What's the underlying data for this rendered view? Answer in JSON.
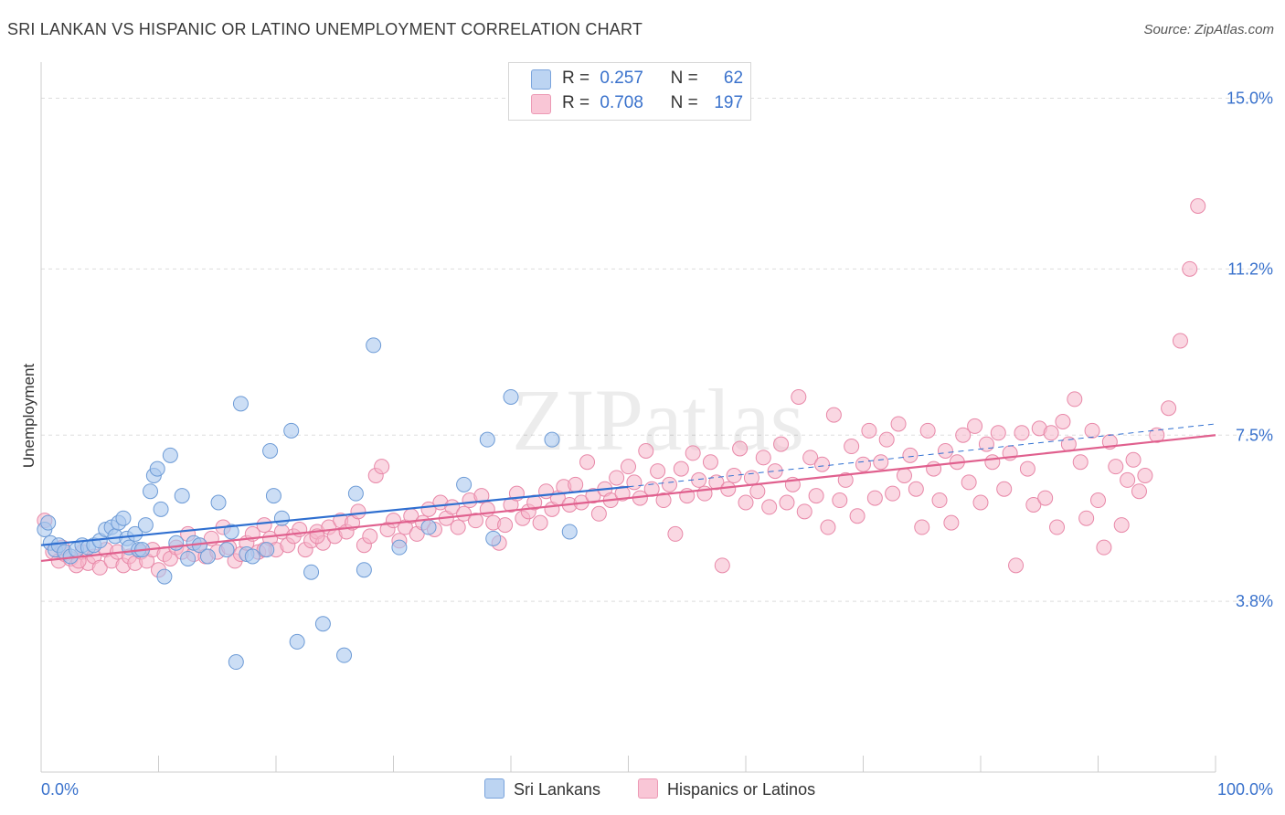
{
  "title": "SRI LANKAN VS HISPANIC OR LATINO UNEMPLOYMENT CORRELATION CHART",
  "source": "Source: ZipAtlas.com",
  "watermark": "ZIPatlas",
  "legend_top": {
    "rows": [
      {
        "r_label": "R =",
        "r_value": "0.257",
        "n_label": "N =",
        "n_value": "62"
      },
      {
        "r_label": "R =",
        "r_value": "0.708",
        "n_label": "N =",
        "n_value": "197"
      }
    ]
  },
  "legend_bottom": [
    "Sri Lankans",
    "Hispanics or Latinos"
  ],
  "colors": {
    "blue_fill": "#aac8ee",
    "blue_stroke": "#6d9bd6",
    "blue_line": "#2f6fd0",
    "pink_fill": "#f5b6ca",
    "pink_stroke": "#e888a8",
    "pink_line": "#e0608e",
    "tick_label": "#3a72cc",
    "grid": "#dddddd"
  },
  "chart_data": {
    "type": "scatter",
    "xlabel": "",
    "ylabel": "Unemployment",
    "xlim": [
      0,
      100
    ],
    "ylim": [
      0,
      15.6
    ],
    "x_tick_labels": [
      "0.0%",
      "100.0%"
    ],
    "y_ticks": [
      3.8,
      7.5,
      11.2,
      15.0
    ],
    "y_tick_labels": [
      "3.8%",
      "7.5%",
      "11.2%",
      "15.0%"
    ],
    "grid": true,
    "legend_placement": "top-center",
    "series": [
      {
        "name": "Sri Lankans",
        "r": 0.257,
        "n": 62,
        "trend": {
          "x": [
            0,
            50
          ],
          "y": [
            5.05,
            6.35
          ],
          "extended_to": [
            100,
            7.75
          ]
        },
        "points": [
          [
            0.3,
            5.4
          ],
          [
            0.8,
            5.1
          ],
          [
            1.2,
            4.95
          ],
          [
            1.5,
            5.05
          ],
          [
            2.0,
            4.9
          ],
          [
            2.5,
            4.8
          ],
          [
            3.0,
            4.95
          ],
          [
            3.5,
            5.05
          ],
          [
            4.0,
            5.0
          ],
          [
            4.5,
            5.05
          ],
          [
            5.0,
            5.15
          ],
          [
            5.5,
            5.4
          ],
          [
            6.0,
            5.45
          ],
          [
            6.3,
            5.25
          ],
          [
            6.6,
            5.55
          ],
          [
            7.0,
            5.65
          ],
          [
            7.3,
            5.2
          ],
          [
            7.5,
            5.0
          ],
          [
            8.0,
            5.3
          ],
          [
            8.3,
            4.95
          ],
          [
            8.6,
            4.95
          ],
          [
            8.9,
            5.5
          ],
          [
            9.3,
            6.25
          ],
          [
            9.6,
            6.6
          ],
          [
            9.9,
            6.75
          ],
          [
            10.2,
            5.85
          ],
          [
            10.5,
            4.35
          ],
          [
            11.0,
            7.05
          ],
          [
            11.5,
            5.1
          ],
          [
            12.0,
            6.15
          ],
          [
            12.5,
            4.75
          ],
          [
            13.0,
            5.1
          ],
          [
            13.5,
            5.05
          ],
          [
            14.2,
            4.8
          ],
          [
            15.1,
            6.0
          ],
          [
            15.8,
            4.95
          ],
          [
            16.2,
            5.35
          ],
          [
            16.6,
            2.45
          ],
          [
            17.0,
            8.2
          ],
          [
            17.5,
            4.85
          ],
          [
            18.0,
            4.8
          ],
          [
            19.2,
            4.95
          ],
          [
            19.5,
            7.15
          ],
          [
            19.8,
            6.15
          ],
          [
            20.5,
            5.65
          ],
          [
            21.3,
            7.6
          ],
          [
            21.8,
            2.9
          ],
          [
            23.0,
            4.45
          ],
          [
            24.0,
            3.3
          ],
          [
            25.8,
            2.6
          ],
          [
            26.8,
            6.2
          ],
          [
            27.5,
            4.5
          ],
          [
            28.3,
            9.5
          ],
          [
            30.5,
            5.0
          ],
          [
            33.0,
            5.45
          ],
          [
            36.0,
            6.4
          ],
          [
            38.0,
            7.4
          ],
          [
            38.5,
            5.2
          ],
          [
            40.0,
            8.35
          ],
          [
            43.5,
            7.4
          ],
          [
            45.0,
            5.35
          ],
          [
            0.6,
            5.55
          ]
        ]
      },
      {
        "name": "Hispanics or Latinos",
        "r": 0.708,
        "n": 197,
        "trend": {
          "x": [
            0,
            100
          ],
          "y": [
            4.7,
            7.5
          ]
        },
        "points": [
          [
            0.3,
            5.6
          ],
          [
            1.0,
            4.9
          ],
          [
            1.5,
            4.7
          ],
          [
            2.0,
            4.85
          ],
          [
            2.5,
            4.75
          ],
          [
            3.0,
            4.6
          ],
          [
            3.5,
            4.9
          ],
          [
            4.0,
            4.65
          ],
          [
            4.5,
            4.8
          ],
          [
            5.0,
            4.55
          ],
          [
            5.5,
            4.95
          ],
          [
            6.0,
            4.7
          ],
          [
            6.5,
            4.9
          ],
          [
            7.0,
            4.6
          ],
          [
            7.5,
            4.8
          ],
          [
            8.0,
            4.65
          ],
          [
            8.5,
            4.9
          ],
          [
            9.0,
            4.7
          ],
          [
            9.5,
            4.95
          ],
          [
            10.0,
            4.5
          ],
          [
            10.5,
            4.85
          ],
          [
            11.0,
            4.75
          ],
          [
            11.5,
            5.0
          ],
          [
            12.0,
            4.9
          ],
          [
            12.5,
            5.3
          ],
          [
            13.0,
            4.85
          ],
          [
            13.5,
            5.05
          ],
          [
            14.0,
            4.8
          ],
          [
            14.5,
            5.2
          ],
          [
            15.0,
            4.9
          ],
          [
            15.5,
            5.45
          ],
          [
            16.0,
            5.0
          ],
          [
            16.5,
            4.7
          ],
          [
            17.0,
            4.85
          ],
          [
            17.5,
            5.1
          ],
          [
            18.0,
            5.3
          ],
          [
            18.5,
            4.9
          ],
          [
            19.0,
            5.5
          ],
          [
            19.5,
            5.2
          ],
          [
            20.0,
            4.95
          ],
          [
            20.5,
            5.35
          ],
          [
            21.0,
            5.05
          ],
          [
            21.5,
            5.25
          ],
          [
            22.0,
            5.4
          ],
          [
            22.5,
            4.95
          ],
          [
            23.0,
            5.15
          ],
          [
            23.5,
            5.35
          ],
          [
            24.0,
            5.1
          ],
          [
            24.5,
            5.45
          ],
          [
            25.0,
            5.25
          ],
          [
            25.5,
            5.6
          ],
          [
            26.0,
            5.35
          ],
          [
            26.5,
            5.55
          ],
          [
            27.0,
            5.8
          ],
          [
            27.5,
            5.05
          ],
          [
            28.0,
            5.25
          ],
          [
            28.5,
            6.6
          ],
          [
            29.0,
            6.8
          ],
          [
            29.5,
            5.4
          ],
          [
            30.0,
            5.6
          ],
          [
            30.5,
            5.15
          ],
          [
            31.0,
            5.45
          ],
          [
            31.5,
            5.7
          ],
          [
            32.0,
            5.3
          ],
          [
            32.5,
            5.55
          ],
          [
            33.0,
            5.85
          ],
          [
            33.5,
            5.4
          ],
          [
            34.0,
            6.0
          ],
          [
            34.5,
            5.65
          ],
          [
            35.0,
            5.9
          ],
          [
            35.5,
            5.45
          ],
          [
            36.0,
            5.75
          ],
          [
            36.5,
            6.05
          ],
          [
            37.0,
            5.6
          ],
          [
            37.5,
            6.15
          ],
          [
            38.0,
            5.85
          ],
          [
            38.5,
            5.55
          ],
          [
            39.0,
            5.1
          ],
          [
            39.5,
            5.5
          ],
          [
            40.0,
            5.95
          ],
          [
            40.5,
            6.2
          ],
          [
            41.0,
            5.65
          ],
          [
            41.5,
            5.8
          ],
          [
            42.0,
            6.0
          ],
          [
            42.5,
            5.55
          ],
          [
            43.0,
            6.25
          ],
          [
            43.5,
            5.85
          ],
          [
            44.0,
            6.1
          ],
          [
            44.5,
            6.35
          ],
          [
            45.0,
            5.95
          ],
          [
            45.5,
            6.4
          ],
          [
            46.0,
            6.0
          ],
          [
            46.5,
            6.9
          ],
          [
            47.0,
            6.15
          ],
          [
            47.5,
            5.75
          ],
          [
            48.0,
            6.3
          ],
          [
            48.5,
            6.05
          ],
          [
            49.0,
            6.55
          ],
          [
            49.5,
            6.2
          ],
          [
            50.0,
            6.8
          ],
          [
            50.5,
            6.45
          ],
          [
            51.0,
            6.1
          ],
          [
            51.5,
            7.15
          ],
          [
            52.0,
            6.3
          ],
          [
            52.5,
            6.7
          ],
          [
            53.0,
            6.05
          ],
          [
            53.5,
            6.4
          ],
          [
            54.0,
            5.3
          ],
          [
            54.5,
            6.75
          ],
          [
            55.0,
            6.15
          ],
          [
            55.5,
            7.1
          ],
          [
            56.0,
            6.5
          ],
          [
            56.5,
            6.2
          ],
          [
            57.0,
            6.9
          ],
          [
            57.5,
            6.45
          ],
          [
            58.0,
            4.6
          ],
          [
            58.5,
            6.3
          ],
          [
            59.0,
            6.6
          ],
          [
            59.5,
            7.2
          ],
          [
            60.0,
            6.0
          ],
          [
            60.5,
            6.55
          ],
          [
            61.0,
            6.25
          ],
          [
            61.5,
            7.0
          ],
          [
            62.0,
            5.9
          ],
          [
            62.5,
            6.7
          ],
          [
            63.0,
            7.3
          ],
          [
            63.5,
            6.0
          ],
          [
            64.0,
            6.4
          ],
          [
            64.5,
            8.35
          ],
          [
            65.0,
            5.8
          ],
          [
            65.5,
            7.0
          ],
          [
            66.0,
            6.15
          ],
          [
            66.5,
            6.85
          ],
          [
            67.0,
            5.45
          ],
          [
            67.5,
            7.95
          ],
          [
            68.0,
            6.05
          ],
          [
            68.5,
            6.5
          ],
          [
            69.0,
            7.25
          ],
          [
            69.5,
            5.7
          ],
          [
            70.0,
            6.85
          ],
          [
            70.5,
            7.6
          ],
          [
            71.0,
            6.1
          ],
          [
            71.5,
            6.9
          ],
          [
            72.0,
            7.4
          ],
          [
            72.5,
            6.2
          ],
          [
            73.0,
            7.75
          ],
          [
            73.5,
            6.6
          ],
          [
            74.0,
            7.05
          ],
          [
            74.5,
            6.3
          ],
          [
            75.0,
            5.45
          ],
          [
            75.5,
            7.6
          ],
          [
            76.0,
            6.75
          ],
          [
            76.5,
            6.05
          ],
          [
            77.0,
            7.15
          ],
          [
            77.5,
            5.55
          ],
          [
            78.0,
            6.9
          ],
          [
            78.5,
            7.5
          ],
          [
            79.0,
            6.45
          ],
          [
            79.5,
            7.7
          ],
          [
            80.0,
            6.0
          ],
          [
            80.5,
            7.3
          ],
          [
            81.0,
            6.9
          ],
          [
            81.5,
            7.55
          ],
          [
            82.0,
            6.3
          ],
          [
            82.5,
            7.1
          ],
          [
            83.0,
            4.6
          ],
          [
            83.5,
            7.55
          ],
          [
            84.0,
            6.75
          ],
          [
            84.5,
            5.95
          ],
          [
            85.0,
            7.65
          ],
          [
            85.5,
            6.1
          ],
          [
            86.0,
            7.55
          ],
          [
            86.5,
            5.45
          ],
          [
            87.0,
            7.8
          ],
          [
            87.5,
            7.3
          ],
          [
            88.0,
            8.3
          ],
          [
            88.5,
            6.9
          ],
          [
            89.0,
            5.65
          ],
          [
            89.5,
            7.6
          ],
          [
            90.0,
            6.05
          ],
          [
            90.5,
            5.0
          ],
          [
            91.0,
            7.35
          ],
          [
            91.5,
            6.8
          ],
          [
            92.0,
            5.5
          ],
          [
            92.5,
            6.5
          ],
          [
            93.0,
            6.95
          ],
          [
            93.5,
            6.25
          ],
          [
            94.0,
            6.6
          ],
          [
            95.0,
            7.5
          ],
          [
            96.0,
            8.1
          ],
          [
            97.0,
            9.6
          ],
          [
            97.8,
            11.2
          ],
          [
            98.5,
            12.6
          ],
          [
            1.8,
            5.0
          ],
          [
            3.2,
            4.7
          ],
          [
            19.0,
            4.95
          ],
          [
            23.5,
            5.25
          ]
        ]
      }
    ]
  }
}
